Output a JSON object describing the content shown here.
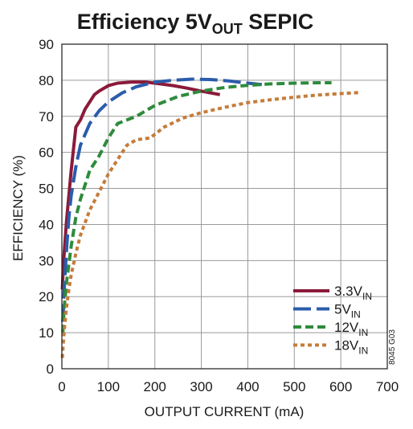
{
  "chart_data": {
    "type": "line",
    "title": {
      "main": "Efficiency 5V",
      "sub": "OUT",
      "suffix": " SEPIC"
    },
    "xlabel": "OUTPUT CURRENT (mA)",
    "ylabel": "EFFICIENCY (%)",
    "xlim": [
      0,
      700
    ],
    "ylim": [
      0,
      90
    ],
    "xticks": [
      0,
      100,
      200,
      300,
      400,
      500,
      600,
      700
    ],
    "yticks": [
      0,
      10,
      20,
      30,
      40,
      50,
      60,
      70,
      80,
      90
    ],
    "grid": true,
    "legend_position": "bottom-right",
    "code": "8045 G03",
    "series": [
      {
        "name": "3.3V",
        "name_sub": "IN",
        "color": "#8b1a3a",
        "dash": "solid",
        "x": [
          1,
          3,
          6,
          10,
          15,
          20,
          25,
          30,
          40,
          50,
          60,
          70,
          80,
          100,
          120,
          150,
          180,
          200,
          240,
          270,
          300,
          340
        ],
        "y": [
          22,
          28,
          34,
          41,
          48,
          55,
          61,
          67,
          69,
          72,
          74,
          76,
          77,
          78.5,
          79.2,
          79.5,
          79.5,
          79.2,
          78.5,
          77.8,
          77,
          76
        ]
      },
      {
        "name": "5V",
        "name_sub": "IN",
        "color": "#2b5cab",
        "dash": "long",
        "x": [
          2,
          5,
          10,
          15,
          20,
          30,
          40,
          50,
          60,
          80,
          100,
          130,
          160,
          200,
          240,
          280,
          320,
          360,
          400,
          430
        ],
        "y": [
          13,
          22,
          33,
          42,
          48,
          56,
          62,
          65,
          68,
          71.5,
          74,
          76.5,
          78.2,
          79.5,
          80,
          80.3,
          80.2,
          79.8,
          79.2,
          78.8
        ]
      },
      {
        "name": "12V",
        "name_sub": "IN",
        "color": "#2e8b3c",
        "dash": "medium",
        "x": [
          2,
          5,
          10,
          20,
          30,
          40,
          50,
          60,
          80,
          100,
          120,
          140,
          160,
          200,
          250,
          300,
          350,
          400,
          450,
          500,
          550,
          580
        ],
        "y": [
          10,
          17,
          24,
          34,
          42,
          47,
          51,
          55,
          59,
          64,
          68,
          69,
          70,
          73,
          75.5,
          77,
          78,
          78.6,
          79,
          79.2,
          79.3,
          79.3
        ]
      },
      {
        "name": "18V",
        "name_sub": "IN",
        "color": "#c47c3a",
        "dash": "dotted",
        "x": [
          1,
          3,
          6,
          10,
          15,
          20,
          30,
          40,
          60,
          80,
          100,
          120,
          140,
          160,
          190,
          220,
          260,
          300,
          350,
          400,
          450,
          500,
          550,
          600,
          640
        ],
        "y": [
          3,
          7,
          12,
          17,
          22,
          26,
          32,
          37,
          44,
          49,
          54,
          58,
          62,
          63.5,
          64,
          67,
          69.5,
          71,
          72.5,
          73.8,
          74.6,
          75.3,
          75.9,
          76.3,
          76.6
        ]
      }
    ]
  }
}
